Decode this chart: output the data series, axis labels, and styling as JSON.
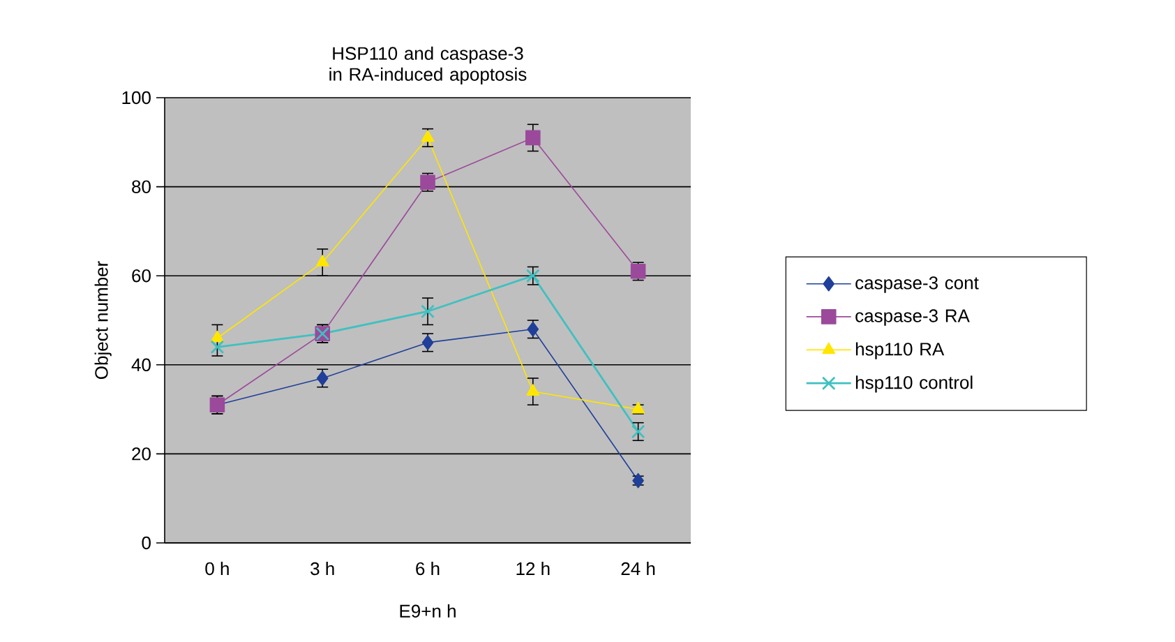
{
  "chart_data": {
    "type": "line",
    "title": "HSP110 and caspase-3 in RA-induced apoptosis",
    "xlabel": "E9+n h",
    "ylabel": "Object number",
    "categories": [
      "0 h",
      "3 h",
      "6 h",
      "12 h",
      "24 h"
    ],
    "ylim": [
      0,
      100
    ],
    "yticks": [
      0,
      20,
      40,
      60,
      80,
      100
    ],
    "grid": "y",
    "legend": "right",
    "series": [
      {
        "name": "caspase-3 cont",
        "color": "#1f3f99",
        "marker": "diamond",
        "values": [
          31,
          37,
          45,
          48,
          14
        ],
        "errors": [
          2,
          2,
          2,
          2,
          1
        ]
      },
      {
        "name": "caspase-3 RA",
        "color": "#9b4a9b",
        "marker": "square",
        "values": [
          31,
          47,
          81,
          91,
          61
        ],
        "errors": [
          2,
          2,
          2,
          3,
          2
        ]
      },
      {
        "name": "hsp110 RA",
        "color": "#ffe600",
        "marker": "triangle",
        "values": [
          46,
          63,
          91,
          34,
          30
        ],
        "errors": [
          [
            42,
            49
          ],
          3,
          2,
          3,
          1
        ]
      },
      {
        "name": "hsp110 control",
        "color": "#40c0c0",
        "marker": "cross",
        "values": [
          44,
          47,
          52,
          60,
          25
        ],
        "errors": [
          null,
          2,
          3,
          2,
          2
        ]
      }
    ]
  }
}
